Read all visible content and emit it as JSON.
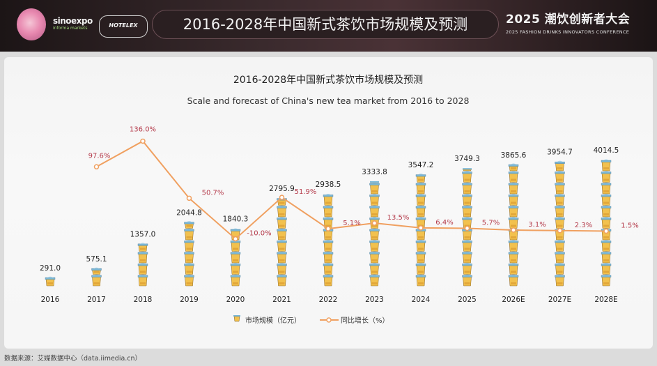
{
  "banner": {
    "logo_left_top": "sinoexpo",
    "logo_left_bottom": "informa markets",
    "logo_mid": "HOTELEX",
    "title": "2016-2028年中国新式茶饮市场规模及预测",
    "right_title": "2025 潮饮创新者大会",
    "right_subtitle": "2025 FASHION DRINKS INNOVATORS CONFERENCE"
  },
  "source": "数据来源：艾媒数据中心（data.iimedia.cn）",
  "colors": {
    "line": "#f0a060",
    "pct_label": "#b43a4a",
    "cup_body": "#f2c14e",
    "cup_lid": "#7ab8d8"
  },
  "chart_data": {
    "type": "bar",
    "title": "2016-2028年中国新式茶饮市场规模及预测",
    "subtitle": "Scale and forecast of China's new tea market from 2016 to 2028",
    "categories": [
      "2016",
      "2017",
      "2018",
      "2019",
      "2020",
      "2021",
      "2022",
      "2023",
      "2024",
      "2025",
      "2026E",
      "2027E",
      "2028E"
    ],
    "series": [
      {
        "name": "市场规模（亿元）",
        "kind": "bar",
        "values": [
          291.0,
          575.1,
          1357.0,
          2044.8,
          1840.3,
          2795.9,
          2938.5,
          3333.8,
          3547.2,
          3749.3,
          3865.6,
          3954.7,
          4014.5
        ],
        "labels": [
          "291.0",
          "575.1",
          "1357.0",
          "2044.8",
          "1840.3",
          "2795.9",
          "2938.5",
          "3333.8",
          "3547.2",
          "3749.3",
          "3865.6",
          "3954.7",
          "4014.5"
        ]
      },
      {
        "name": "同比增长（%）",
        "kind": "line",
        "values": [
          null,
          97.6,
          136.0,
          50.7,
          -10.0,
          51.9,
          5.1,
          13.5,
          6.4,
          5.7,
          3.1,
          2.3,
          1.5
        ],
        "labels": [
          "",
          "97.6%",
          "136.0%",
          "50.7%",
          "-10.0%",
          "51.9%",
          "5.1%",
          "13.5%",
          "6.4%",
          "5.7%",
          "3.1%",
          "2.3%",
          "1.5%"
        ]
      }
    ],
    "legend_position": "bottom",
    "grid": false
  }
}
